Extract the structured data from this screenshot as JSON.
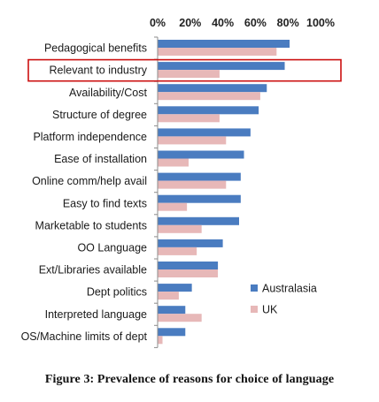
{
  "figure": {
    "caption": "Figure 3: Prevalence of reasons for choice of language"
  },
  "chart_data": {
    "type": "bar",
    "orientation": "horizontal",
    "title": "",
    "xlabel": "",
    "ylabel": "",
    "xlim": [
      0,
      100
    ],
    "x_ticks": [
      "0%",
      "20%",
      "40%",
      "60%",
      "80%",
      "100%"
    ],
    "x_axis_position": "top",
    "grid": false,
    "legend_position": "bottom-right",
    "categories": [
      "Pedagogical benefits",
      "Relevant to industry",
      "Availability/Cost",
      "Structure of degree",
      "Platform independence",
      "Ease of installation",
      "Online comm/help avail",
      "Easy to find texts",
      "Marketable to students",
      "OO Language",
      "Ext/Libraries available",
      "Dept politics",
      "Interpreted language",
      "OS/Machine limits of dept"
    ],
    "series": [
      {
        "name": "Australasia",
        "color": "#4a7cc0",
        "values": [
          81,
          78,
          67,
          62,
          57,
          53,
          51,
          51,
          50,
          40,
          37,
          21,
          17,
          17
        ]
      },
      {
        "name": "UK",
        "color": "#e7b8b8",
        "values": [
          73,
          38,
          63,
          38,
          42,
          19,
          42,
          18,
          27,
          24,
          37,
          13,
          27,
          3
        ]
      }
    ],
    "highlight": {
      "category": "Relevant to industry",
      "color": "#cc1111"
    }
  }
}
